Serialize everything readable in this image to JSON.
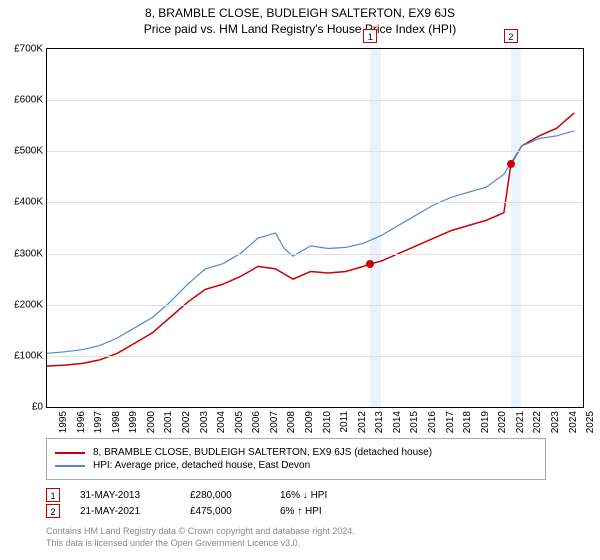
{
  "titles": {
    "line1": "8, BRAMBLE CLOSE, BUDLEIGH SALTERTON, EX9 6JS",
    "line2": "Price paid vs. HM Land Registry's House Price Index (HPI)"
  },
  "chart": {
    "type": "line",
    "x_range": [
      1995,
      2025.5
    ],
    "y_range": [
      0,
      700000
    ],
    "y_ticks": [
      0,
      100000,
      200000,
      300000,
      400000,
      500000,
      600000,
      700000
    ],
    "y_tick_labels": [
      "£0",
      "£100K",
      "£200K",
      "£300K",
      "£400K",
      "£500K",
      "£600K",
      "£700K"
    ],
    "x_ticks": [
      1995,
      1996,
      1997,
      1998,
      1999,
      2000,
      2001,
      2002,
      2003,
      2004,
      2005,
      2006,
      2007,
      2008,
      2009,
      2010,
      2011,
      2012,
      2013,
      2014,
      2015,
      2016,
      2017,
      2018,
      2019,
      2020,
      2021,
      2022,
      2023,
      2024,
      2025
    ],
    "grid_color": "#e0e0e0",
    "background_color": "#ffffff",
    "shaded_regions": [
      {
        "from": 2013.4,
        "to": 2014,
        "color": "#eaf2fb"
      },
      {
        "from": 2021.4,
        "to": 2022,
        "color": "#eaf2fb"
      }
    ],
    "series": [
      {
        "name": "price_paid",
        "color": "#cc0000",
        "width": 1.5,
        "points": [
          [
            1995,
            80000
          ],
          [
            1996,
            82000
          ],
          [
            1997,
            85000
          ],
          [
            1998,
            92000
          ],
          [
            1999,
            105000
          ],
          [
            2000,
            125000
          ],
          [
            2001,
            145000
          ],
          [
            2002,
            175000
          ],
          [
            2003,
            205000
          ],
          [
            2004,
            230000
          ],
          [
            2005,
            240000
          ],
          [
            2006,
            255000
          ],
          [
            2007,
            275000
          ],
          [
            2008,
            270000
          ],
          [
            2009,
            250000
          ],
          [
            2010,
            265000
          ],
          [
            2011,
            262000
          ],
          [
            2012,
            265000
          ],
          [
            2013,
            275000
          ],
          [
            2013.4,
            280000
          ],
          [
            2014,
            285000
          ],
          [
            2015,
            300000
          ],
          [
            2016,
            315000
          ],
          [
            2017,
            330000
          ],
          [
            2018,
            345000
          ],
          [
            2019,
            355000
          ],
          [
            2020,
            365000
          ],
          [
            2021,
            380000
          ],
          [
            2021.4,
            475000
          ],
          [
            2022,
            510000
          ],
          [
            2023,
            530000
          ],
          [
            2024,
            545000
          ],
          [
            2025,
            575000
          ]
        ]
      },
      {
        "name": "hpi",
        "color": "#5588cc",
        "width": 1.2,
        "points": [
          [
            1995,
            105000
          ],
          [
            1996,
            108000
          ],
          [
            1997,
            112000
          ],
          [
            1998,
            120000
          ],
          [
            1999,
            135000
          ],
          [
            2000,
            155000
          ],
          [
            2001,
            175000
          ],
          [
            2002,
            205000
          ],
          [
            2003,
            240000
          ],
          [
            2004,
            270000
          ],
          [
            2005,
            280000
          ],
          [
            2006,
            300000
          ],
          [
            2007,
            330000
          ],
          [
            2008,
            340000
          ],
          [
            2008.5,
            310000
          ],
          [
            2009,
            295000
          ],
          [
            2010,
            315000
          ],
          [
            2011,
            310000
          ],
          [
            2012,
            312000
          ],
          [
            2013,
            320000
          ],
          [
            2014,
            335000
          ],
          [
            2015,
            355000
          ],
          [
            2016,
            375000
          ],
          [
            2017,
            395000
          ],
          [
            2018,
            410000
          ],
          [
            2019,
            420000
          ],
          [
            2020,
            430000
          ],
          [
            2021,
            455000
          ],
          [
            2022,
            510000
          ],
          [
            2023,
            525000
          ],
          [
            2024,
            530000
          ],
          [
            2025,
            540000
          ]
        ]
      }
    ],
    "sale_markers": [
      {
        "n": "1",
        "x": 2013.4,
        "y": 280000
      },
      {
        "n": "2",
        "x": 2021.4,
        "y": 475000
      }
    ]
  },
  "legend": {
    "items": [
      {
        "color": "#cc0000",
        "label": "8, BRAMBLE CLOSE, BUDLEIGH SALTERTON, EX9 6JS (detached house)"
      },
      {
        "color": "#5588cc",
        "label": "HPI: Average price, detached house, East Devon"
      }
    ]
  },
  "sales": [
    {
      "n": "1",
      "date": "31-MAY-2013",
      "price": "£280,000",
      "pct": "16%",
      "arrow": "↓",
      "vs": "HPI"
    },
    {
      "n": "2",
      "date": "21-MAY-2021",
      "price": "£475,000",
      "pct": "6%",
      "arrow": "↑",
      "vs": "HPI"
    }
  ],
  "footer": {
    "line1": "Contains HM Land Registry data © Crown copyright and database right 2024.",
    "line2": "This data is licensed under the Open Government Licence v3.0."
  }
}
